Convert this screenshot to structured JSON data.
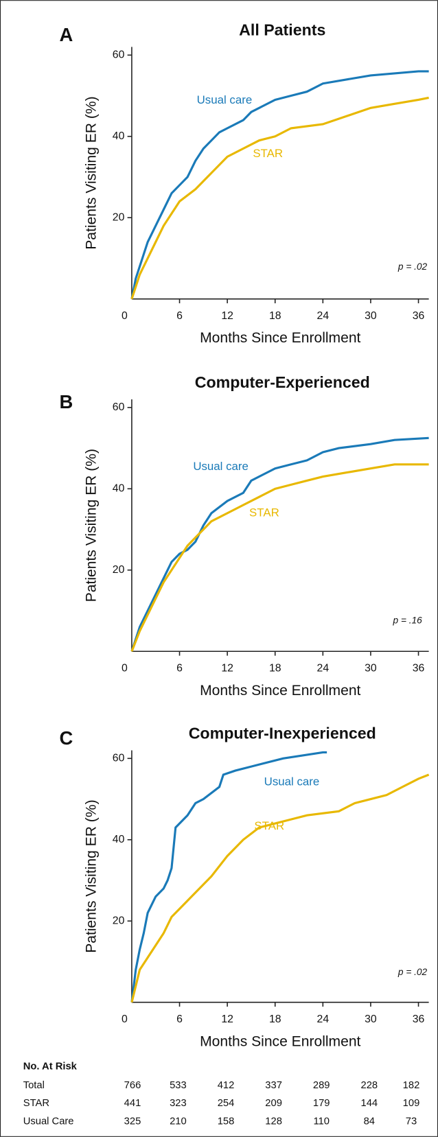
{
  "chart_data": [
    {
      "type": "line",
      "label": "A",
      "title": "All Patients",
      "xlabel": "Months Since Enrollment",
      "ylabel": "Patients Visiting ER (%)",
      "xlim": [
        0,
        37.3
      ],
      "ylim": [
        0,
        62
      ],
      "xticks": [
        0,
        6,
        12,
        18,
        24,
        30,
        36
      ],
      "yticks": [
        20,
        40,
        60
      ],
      "annotations": [
        "p = .02"
      ],
      "series": [
        {
          "name": "Usual care",
          "color": "#1a7ab8",
          "x": [
            0,
            0.5,
            1,
            2,
            3,
            4,
            5,
            6,
            7,
            8,
            9,
            10,
            11,
            12,
            14,
            15,
            16,
            18,
            20,
            22,
            24,
            27,
            30,
            33,
            36,
            37.3
          ],
          "values": [
            0,
            5,
            8,
            14,
            18,
            22,
            26,
            28,
            30,
            34,
            37,
            39,
            41,
            42,
            44,
            46,
            47,
            49,
            50,
            51,
            53,
            54,
            55,
            55.5,
            56,
            56
          ]
        },
        {
          "name": "STAR",
          "color": "#e8b800",
          "x": [
            0,
            1,
            2,
            3,
            4,
            5,
            6,
            8,
            10,
            12,
            14,
            16,
            18,
            20,
            24,
            27,
            30,
            33,
            36,
            37.3
          ],
          "values": [
            0,
            6,
            10,
            14,
            18,
            21,
            24,
            27,
            31,
            35,
            37,
            39,
            40,
            42,
            43,
            45,
            47,
            48,
            49,
            49.5
          ]
        }
      ]
    },
    {
      "type": "line",
      "label": "B",
      "title": "Computer-Experienced",
      "xlabel": "Months Since Enrollment",
      "ylabel": "Patients Visiting ER (%)",
      "xlim": [
        0,
        37.3
      ],
      "ylim": [
        0,
        62
      ],
      "xticks": [
        0,
        6,
        12,
        18,
        24,
        30,
        36
      ],
      "yticks": [
        20,
        40,
        60
      ],
      "annotations": [
        "p = .16"
      ],
      "series": [
        {
          "name": "Usual care",
          "color": "#1a7ab8",
          "x": [
            0,
            1,
            2,
            3,
            4,
            5,
            6,
            7,
            8,
            9,
            10,
            12,
            14,
            15,
            17,
            18,
            20,
            22,
            24,
            26,
            30,
            33,
            37.3
          ],
          "values": [
            0,
            6,
            10,
            14,
            18,
            22,
            24,
            25,
            27,
            31,
            34,
            37,
            39,
            42,
            44,
            45,
            46,
            47,
            49,
            50,
            51,
            52,
            52.5
          ]
        },
        {
          "name": "STAR",
          "color": "#e8b800",
          "x": [
            0,
            1,
            2,
            3,
            4,
            5,
            6,
            7,
            8,
            10,
            12,
            14,
            16,
            18,
            20,
            22,
            24,
            27,
            30,
            33,
            37.3
          ],
          "values": [
            0,
            5,
            9,
            13,
            17,
            20,
            23,
            26,
            28,
            32,
            34,
            36,
            38,
            40,
            41,
            42,
            43,
            44,
            45,
            46,
            46
          ]
        }
      ]
    },
    {
      "type": "line",
      "label": "C",
      "title": "Computer-Inexperienced",
      "xlabel": "Months Since Enrollment",
      "ylabel": "Patients Visiting ER (%)",
      "xlim": [
        0,
        37.3
      ],
      "ylim": [
        0,
        62
      ],
      "xticks": [
        0,
        6,
        12,
        18,
        24,
        30,
        36
      ],
      "yticks": [
        20,
        40,
        60
      ],
      "annotations": [
        "p = .02"
      ],
      "series": [
        {
          "name": "Usual care",
          "color": "#1a7ab8",
          "x": [
            0,
            0.5,
            1,
            1.5,
            2,
            3,
            4,
            4.5,
            5,
            5.5,
            7,
            8,
            9,
            11,
            11.5,
            13,
            15,
            19,
            24,
            24.5
          ],
          "values": [
            0,
            8,
            13,
            17,
            22,
            26,
            28,
            30,
            33,
            43,
            46,
            49,
            50,
            53,
            56,
            57,
            58,
            60,
            61.5,
            61.5
          ]
        },
        {
          "name": "STAR",
          "color": "#e8b800",
          "x": [
            0,
            0.5,
            1,
            2,
            3,
            4,
            5,
            6,
            8,
            10,
            12,
            14,
            16,
            18,
            20,
            22,
            26,
            28,
            30,
            32,
            34,
            36,
            37.3
          ],
          "values": [
            0,
            4,
            8,
            11,
            14,
            17,
            21,
            23,
            27,
            31,
            36,
            40,
            43,
            44,
            45,
            46,
            47,
            49,
            50,
            51,
            53,
            55,
            56
          ]
        }
      ]
    }
  ],
  "table": {
    "title": "No. At Risk",
    "rows": [
      [
        "Total",
        "766",
        "533",
        "412",
        "337",
        "289",
        "228",
        "182"
      ],
      [
        "STAR",
        "441",
        "323",
        "254",
        "209",
        "179",
        "144",
        "109"
      ],
      [
        "Usual Care",
        "325",
        "210",
        "158",
        "128",
        "110",
        "84",
        "73"
      ]
    ]
  }
}
